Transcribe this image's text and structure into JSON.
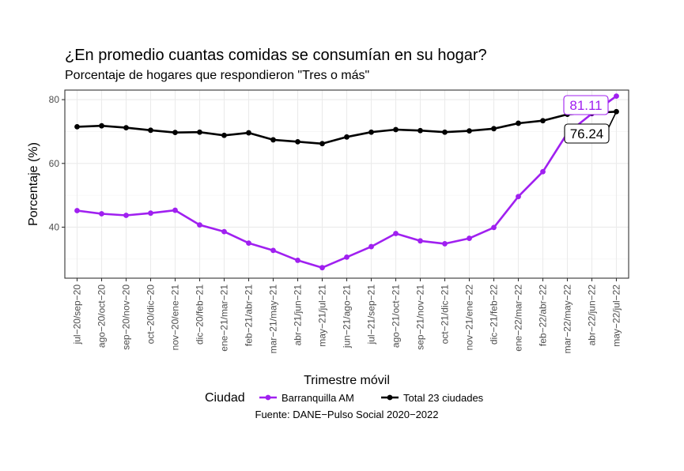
{
  "chart_data": {
    "type": "line",
    "title": "¿En promedio cuantas comidas se consumían en su hogar?",
    "subtitle": "Porcentaje de hogares que respondieron \"Tres o más\"",
    "xlabel": "Trimestre móvil",
    "ylabel": "Porcentaje (%)",
    "ylim": [
      24,
      83
    ],
    "yticks": [
      40,
      60,
      80
    ],
    "grid": true,
    "categories": [
      "jul−20/sep−20",
      "ago−20/oct−20",
      "sep−20/nov−20",
      "oct−20/dic−20",
      "nov−20/ene−21",
      "dic−20/feb−21",
      "ene−21/mar−21",
      "feb−21/abr−21",
      "mar−21/may−21",
      "abr−21/jun−21",
      "may−21/jul−21",
      "jun−21/ago−21",
      "jul−21/sep−21",
      "ago−21/oct−21",
      "sep−21/nov−21",
      "oct−21/dic−21",
      "nov−21/ene−22",
      "dic−21/feb−22",
      "ene−22/mar−22",
      "feb−22/abr−22",
      "mar−22/may−22",
      "abr−22/jun−22",
      "may−22/jul−22"
    ],
    "series": [
      {
        "name": "Barranquilla AM",
        "color": "#a020f0",
        "values": [
          45.2,
          44.2,
          43.7,
          44.4,
          45.3,
          40.7,
          38.6,
          35.0,
          32.7,
          29.6,
          27.3,
          30.6,
          33.9,
          38.0,
          35.7,
          34.8,
          36.5,
          39.9,
          49.6,
          57.4,
          69.5,
          75.6,
          81.11
        ]
      },
      {
        "name": "Total 23 ciudades",
        "color": "#000000",
        "values": [
          71.5,
          71.8,
          71.2,
          70.4,
          69.7,
          69.8,
          68.8,
          69.6,
          67.4,
          66.8,
          66.2,
          68.3,
          69.8,
          70.6,
          70.3,
          69.8,
          70.2,
          70.9,
          72.6,
          73.4,
          75.4,
          75.8,
          76.24
        ]
      }
    ],
    "annotations": [
      {
        "text": "81.11",
        "series": "Barranquilla AM",
        "color": "#a020f0"
      },
      {
        "text": "76.24",
        "series": "Total 23 ciudades",
        "color": "#000000"
      }
    ],
    "legend": {
      "title": "Ciudad",
      "position": "bottom"
    },
    "caption": "Fuente: DANE−Pulso Social 2020−2022"
  }
}
